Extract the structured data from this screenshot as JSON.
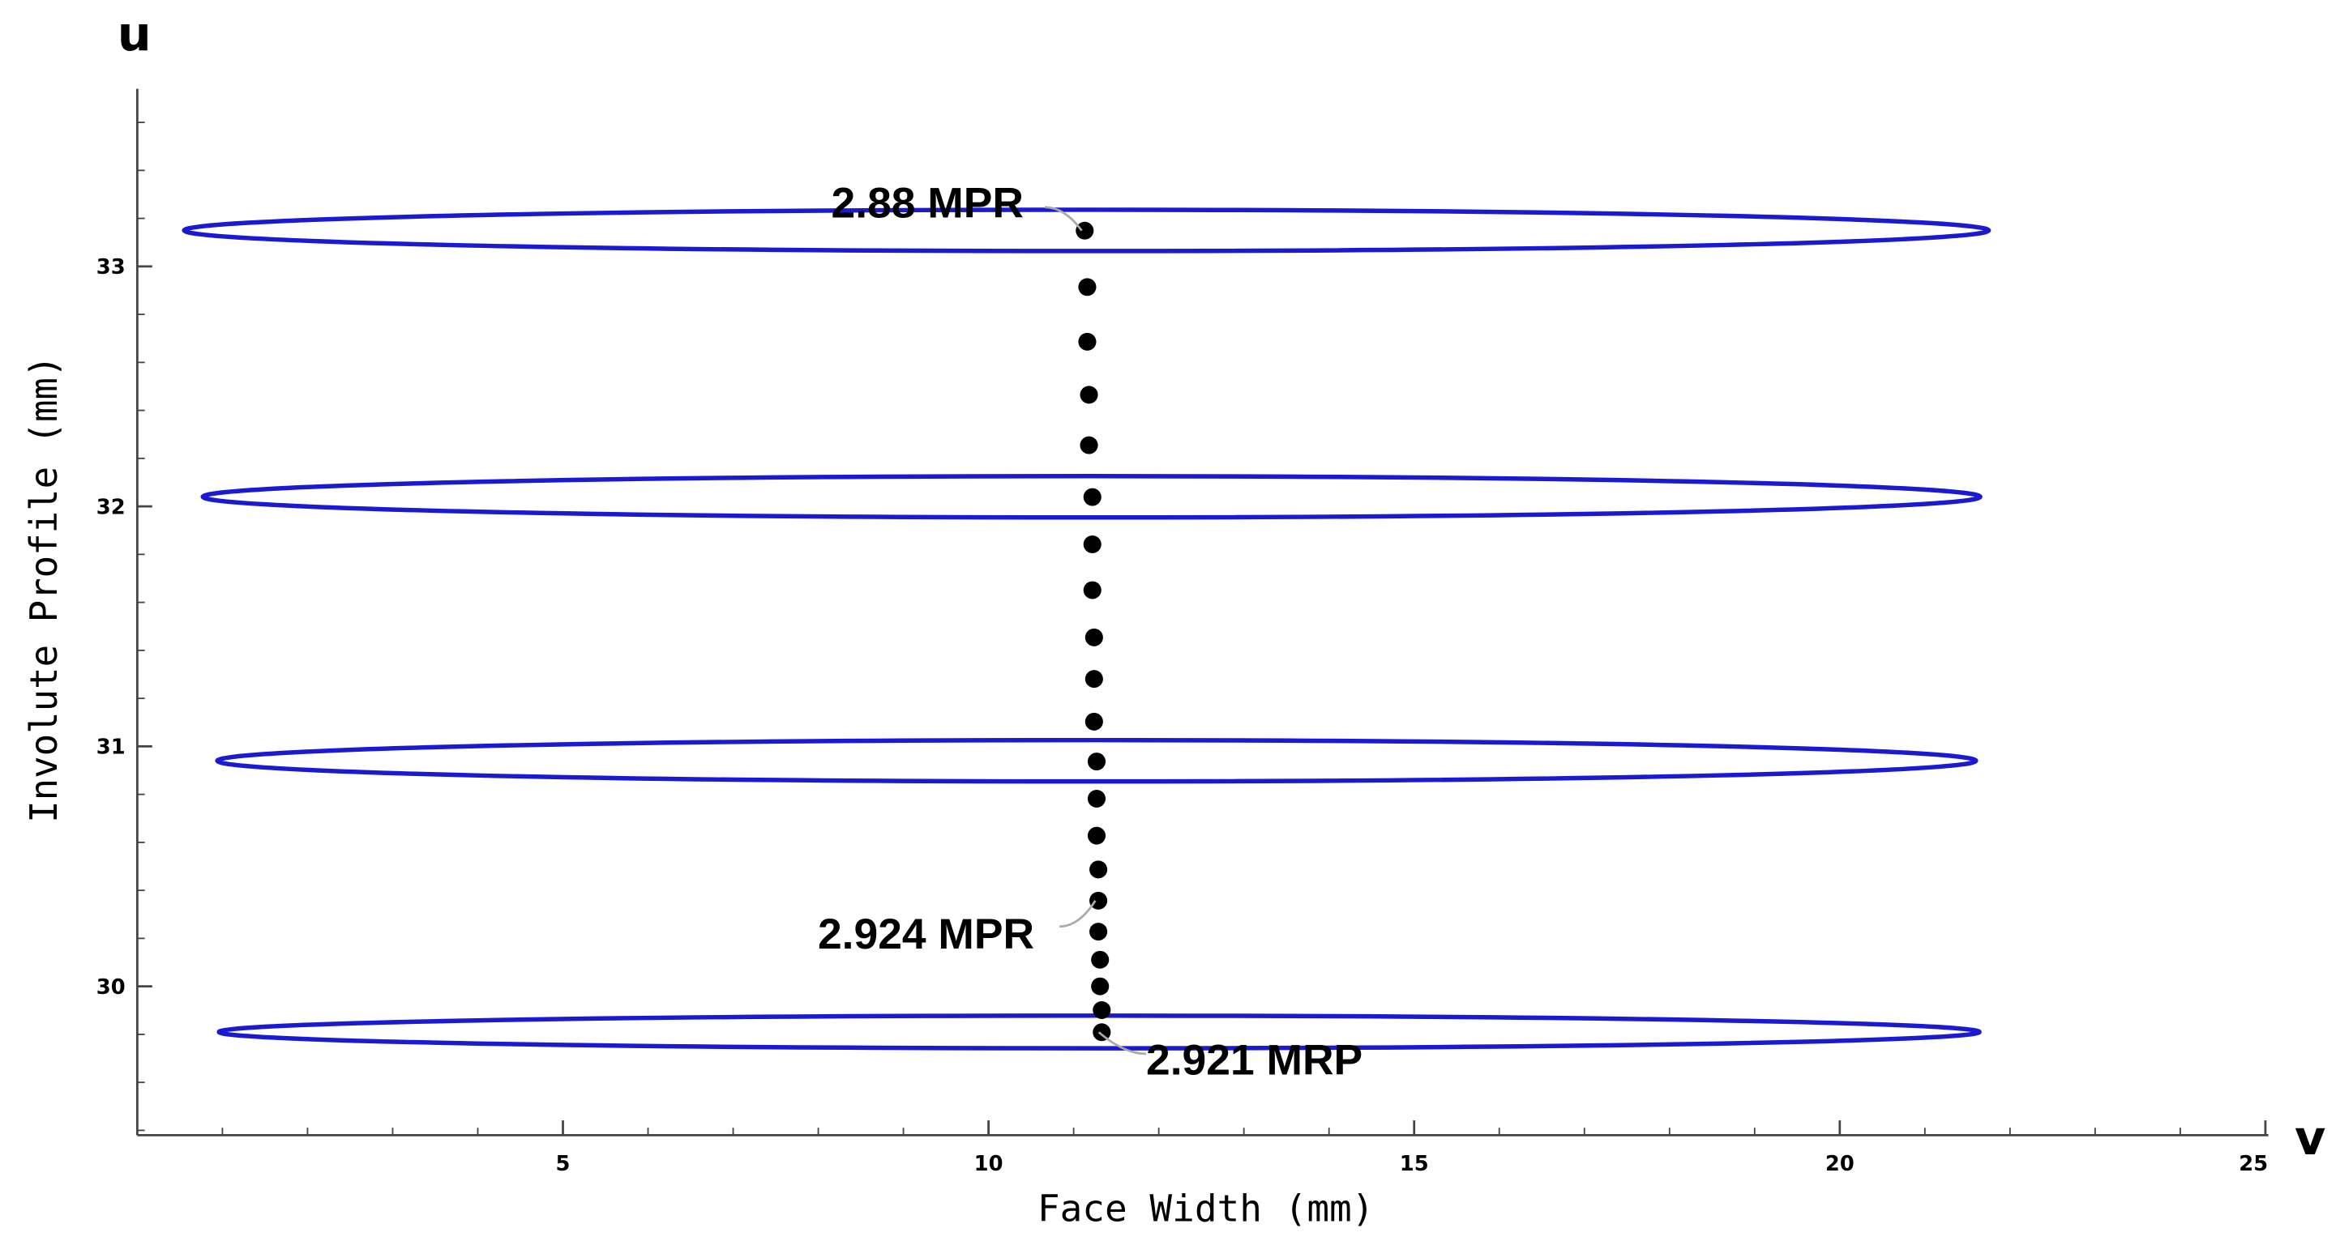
{
  "chart_data": {
    "type": "scatter",
    "x_label": "Face Width (mm)",
    "y_label": "Involute Profile (mm)",
    "x_axis_symbol": "v",
    "y_axis_symbol": "u",
    "xlim": [
      0,
      25
    ],
    "ylim": [
      29.38,
      33.74
    ],
    "xticks": [
      5,
      10,
      15,
      20,
      25
    ],
    "yticks": [
      30,
      31,
      32,
      33
    ],
    "xminorticks": [
      1,
      2,
      3,
      4,
      6,
      7,
      8,
      9,
      11,
      12,
      13,
      14,
      16,
      17,
      18,
      19,
      21,
      22,
      23,
      24
    ],
    "yminorticks": [
      29.4,
      29.6,
      29.8,
      30.2,
      30.4,
      30.6,
      30.8,
      31.2,
      31.4,
      31.6,
      31.8,
      32.2,
      32.4,
      32.6,
      32.8,
      33.2,
      33.4,
      33.6
    ],
    "point_color": "#000000",
    "x": [
      11.13,
      11.16,
      11.16,
      11.18,
      11.18,
      11.22,
      11.22,
      11.22,
      11.24,
      11.24,
      11.24,
      11.27,
      11.27,
      11.27,
      11.29,
      11.29,
      11.29,
      11.31,
      11.31,
      11.33,
      11.33
    ],
    "y": [
      33.149,
      32.914,
      32.686,
      32.465,
      32.255,
      32.039,
      31.842,
      31.651,
      31.454,
      31.281,
      31.103,
      30.937,
      30.782,
      30.628,
      30.487,
      30.357,
      30.228,
      30.111,
      30.0,
      29.901,
      29.809
    ],
    "ellipse_color": "#1a1ad2",
    "ellipses": [
      {
        "cx": 11.15,
        "cy": 33.15,
        "a": 10.6,
        "b": 0.086
      },
      {
        "cx": 11.21,
        "cy": 32.04,
        "a": 10.44,
        "b": 0.086
      },
      {
        "cx": 11.27,
        "cy": 30.94,
        "a": 10.33,
        "b": 0.086
      },
      {
        "cx": 11.3,
        "cy": 29.81,
        "a": 10.34,
        "b": 0.068
      }
    ],
    "annotations": [
      "2.88 MPR",
      "2.924 MPR",
      "2.921 MRP"
    ]
  }
}
